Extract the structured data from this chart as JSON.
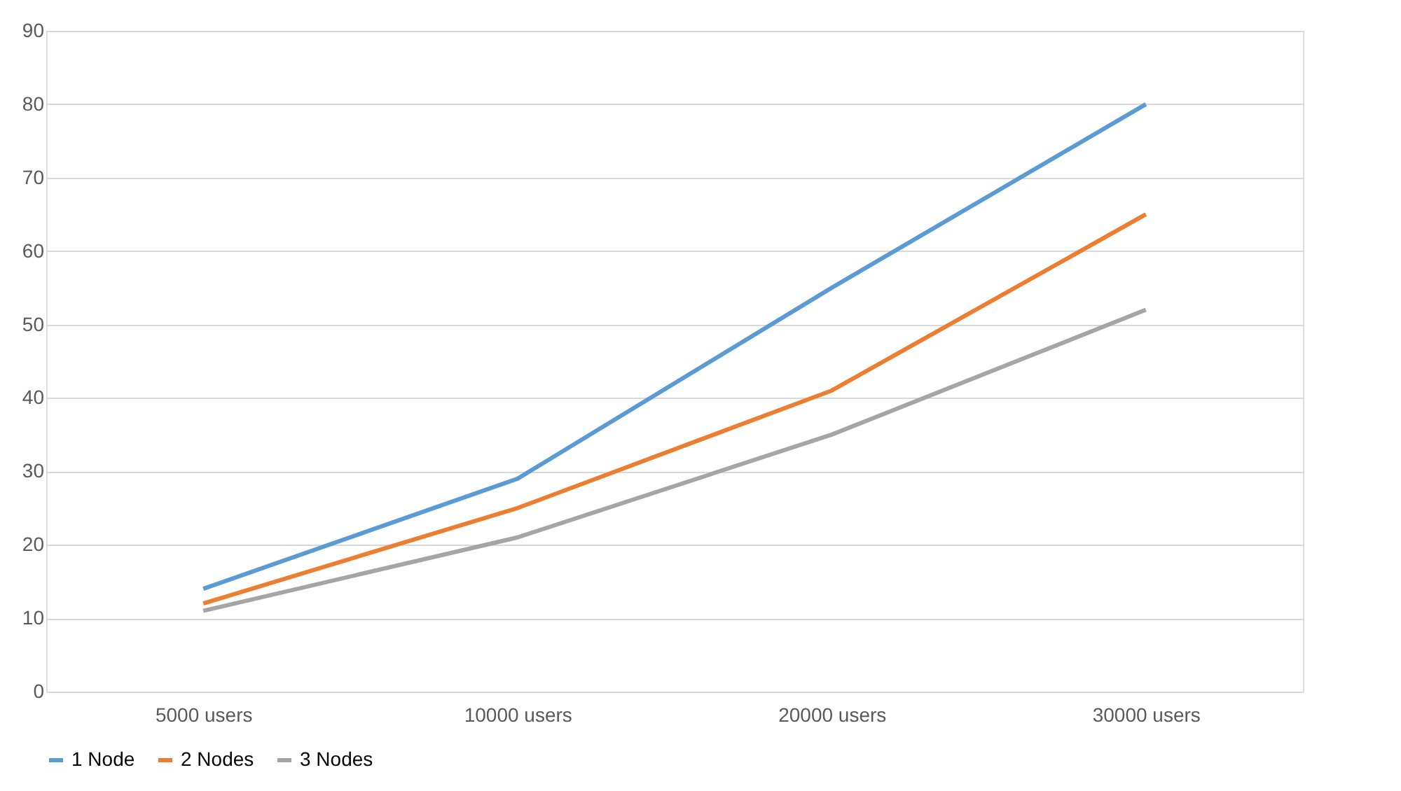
{
  "chart_data": {
    "type": "line",
    "categories": [
      "5000 users",
      "10000 users",
      "20000 users",
      "30000 users"
    ],
    "series": [
      {
        "name": "1 Node",
        "color": "#5b9bd5",
        "values": [
          14,
          29,
          55,
          80
        ]
      },
      {
        "name": "2 Nodes",
        "color": "#ed7d31",
        "values": [
          12,
          25,
          41,
          65
        ]
      },
      {
        "name": "3 Nodes",
        "color": "#a5a5a5",
        "values": [
          11,
          21,
          35,
          52
        ]
      }
    ],
    "ylim": [
      0,
      90
    ],
    "yticks": [
      0,
      10,
      20,
      30,
      40,
      50,
      60,
      70,
      80,
      90
    ],
    "grid": "y",
    "legend": "bottom",
    "marker": "none",
    "line_style": "solid"
  }
}
